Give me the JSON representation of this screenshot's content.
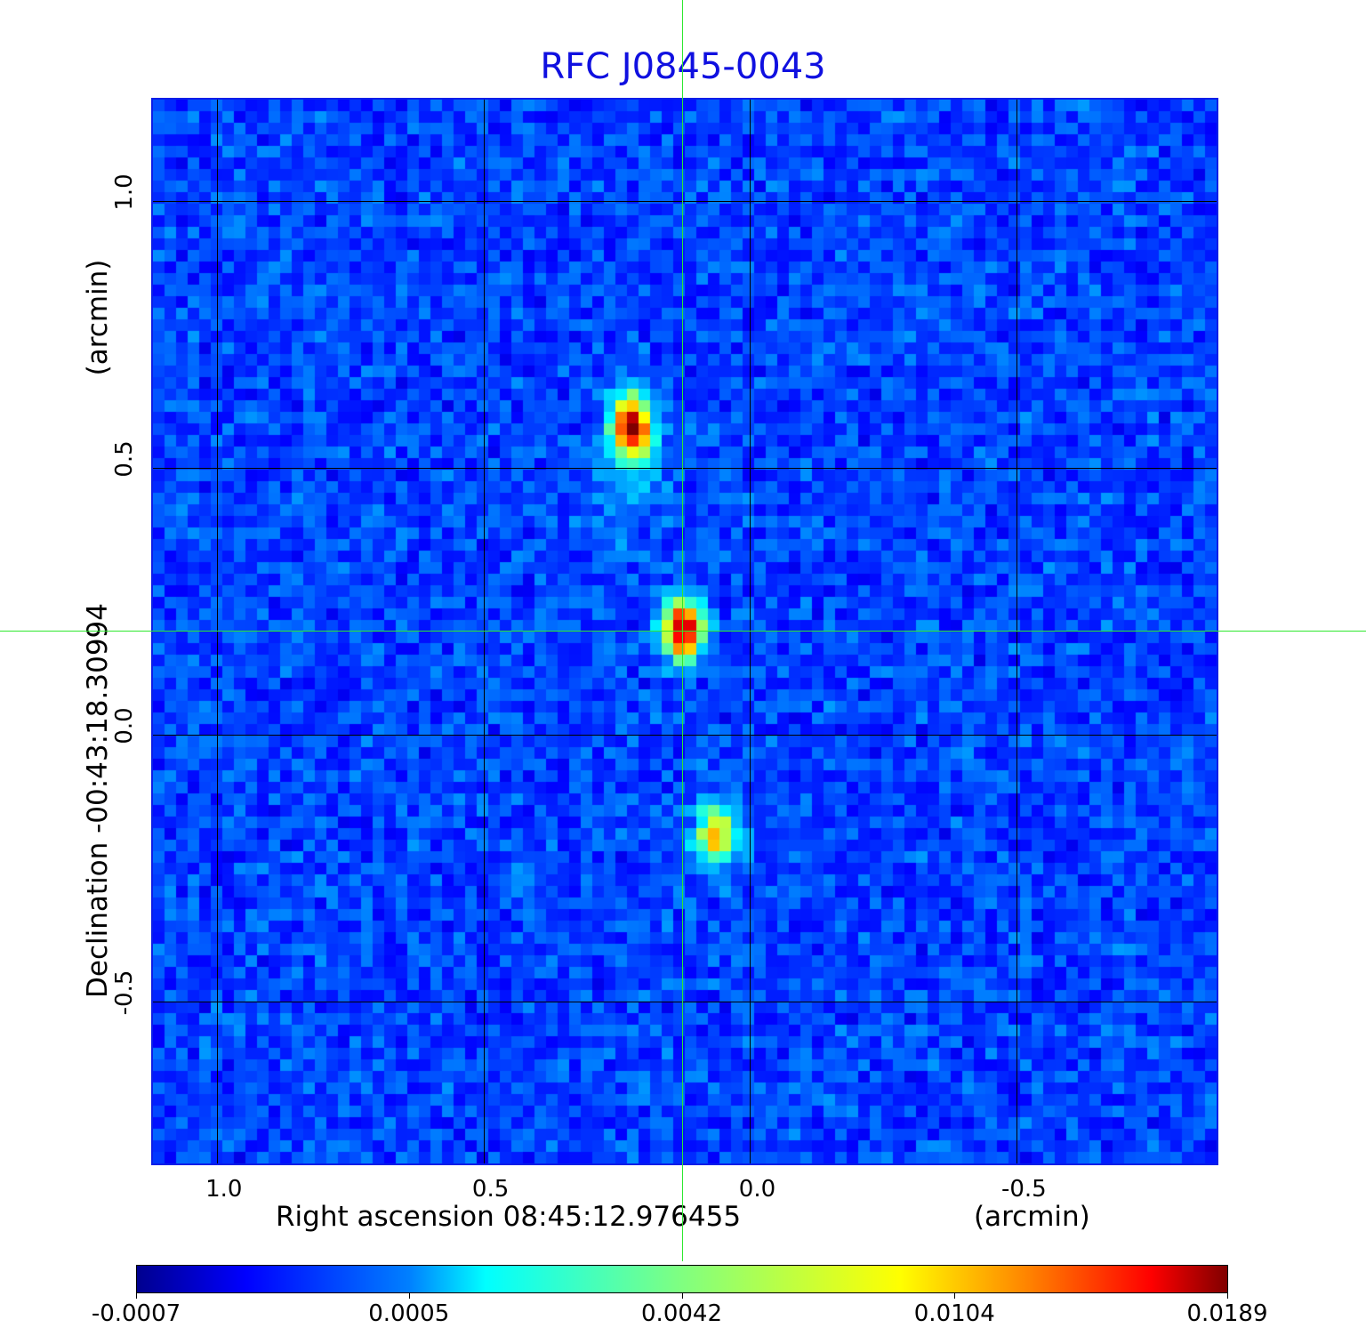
{
  "chart_data": {
    "type": "heatmap",
    "title": "RFC J0845-0043",
    "xlabel": "Right ascension  08:45:12.976455",
    "xunit": "(arcmin)",
    "ylabel": "Declination  -00:43:18.30994",
    "yunit": "(arcmin)",
    "xlim": [
      1.123,
      -0.878
    ],
    "ylim": [
      -0.807,
      1.193
    ],
    "xticks": [
      1.0,
      0.5,
      0.0,
      -0.5
    ],
    "xtick_labels": [
      "1.0",
      "0.5",
      "0.0",
      "-0.5"
    ],
    "yticks": [
      1.0,
      0.5,
      0.0,
      -0.5
    ],
    "ytick_labels": [
      "1.0",
      "0.5",
      "0.0",
      "-0.5"
    ],
    "grid": true,
    "colormap": "jet",
    "colorbar": {
      "tick_labels": [
        "-0.0007",
        "0.0005",
        "0.0042",
        "0.0104",
        "0.0189"
      ],
      "placement": "bottom"
    },
    "crosshair": {
      "x": 0.127,
      "y": 0.195
    },
    "sources": [
      {
        "x": 0.222,
        "y": 0.577,
        "peak": 0.0189
      },
      {
        "x": 0.125,
        "y": 0.197,
        "peak": 0.0185
      },
      {
        "x": 0.063,
        "y": -0.19,
        "peak": 0.009
      }
    ]
  }
}
